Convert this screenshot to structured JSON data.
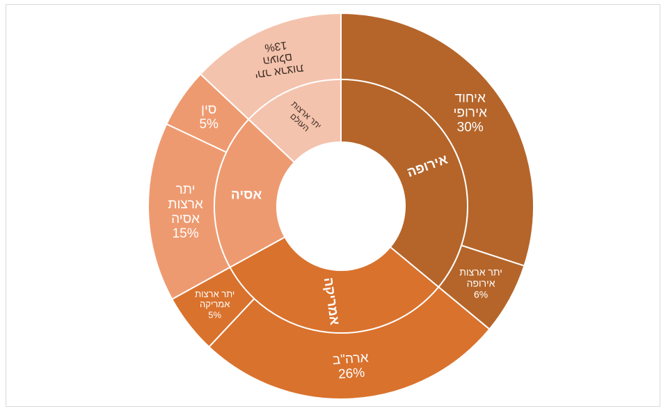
{
  "chart_data": {
    "type": "sunburst",
    "title": "",
    "center": {
      "label": ""
    },
    "inner_ring": [
      {
        "id": "europe",
        "label": "אירופה",
        "value": 36,
        "color": "#b5652a"
      },
      {
        "id": "america",
        "label": "אמריקה",
        "value": 31,
        "color": "#d9722d"
      },
      {
        "id": "asia",
        "label": "אסיה",
        "value": 20,
        "color": "#ee9a70"
      },
      {
        "id": "rest",
        "label": "יתר ארצות העולם",
        "value": 13,
        "color": "#f4c3ad"
      }
    ],
    "outer_ring": [
      {
        "parent": "europe",
        "label": "איחוד אירופי",
        "value": 30,
        "display": "30%",
        "color": "#b5652a"
      },
      {
        "parent": "europe",
        "label": "יתר ארצות אירופה",
        "value": 6,
        "display": "6%",
        "color": "#b5652a"
      },
      {
        "parent": "america",
        "label": "ארה\"ב",
        "value": 26,
        "display": "26%",
        "color": "#d9722d"
      },
      {
        "parent": "america",
        "label": "יתר ארצות אמריקה",
        "value": 5,
        "display": "5%",
        "color": "#d9722d"
      },
      {
        "parent": "asia",
        "label": "יתר ארצות אסיה",
        "value": 15,
        "display": "15%",
        "color": "#ee9a70"
      },
      {
        "parent": "asia",
        "label": "סין",
        "value": 5,
        "display": "5%",
        "color": "#ee9a70"
      },
      {
        "parent": "rest",
        "label": "יתר ארצות העולם",
        "value": 13,
        "display": "13%",
        "color": "#f4c3ad"
      }
    ]
  }
}
